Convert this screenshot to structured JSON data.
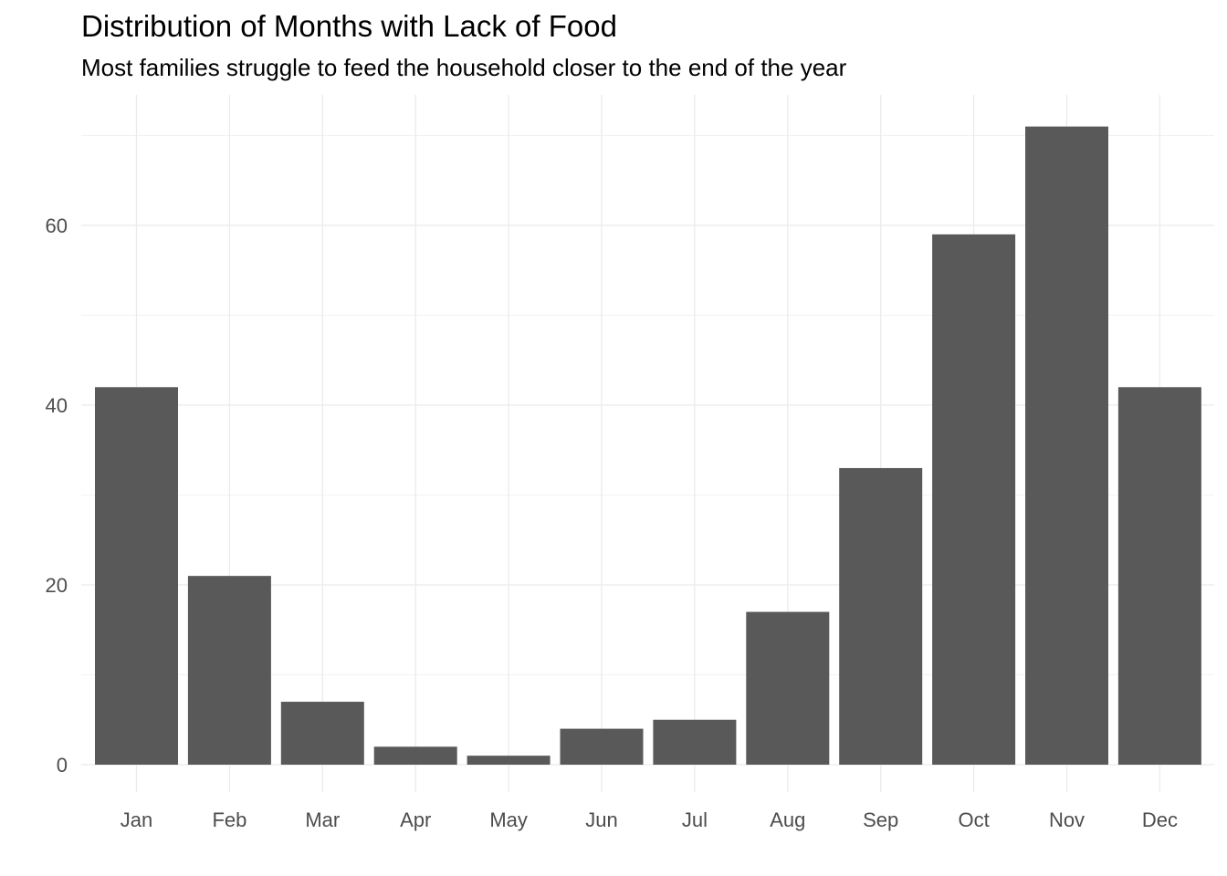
{
  "chart_data": {
    "type": "bar",
    "title": "Distribution of Months with Lack of Food",
    "subtitle": "Most families struggle to feed the household closer to the end of the year",
    "xlabel": "",
    "ylabel": "",
    "categories": [
      "Jan",
      "Feb",
      "Mar",
      "Apr",
      "May",
      "Jun",
      "Jul",
      "Aug",
      "Sep",
      "Oct",
      "Nov",
      "Dec"
    ],
    "values": [
      42,
      21,
      7,
      2,
      1,
      4,
      5,
      17,
      33,
      59,
      71,
      42
    ],
    "ylim": [
      0,
      71
    ],
    "y_ticks": [
      0,
      20,
      40,
      60
    ],
    "grid": true,
    "legend": "none",
    "colors": {
      "bar": "#595959",
      "grid_major": "#ebebeb",
      "grid_minor": "#f2f2f2",
      "tick_text": "#4d4d4d"
    }
  }
}
